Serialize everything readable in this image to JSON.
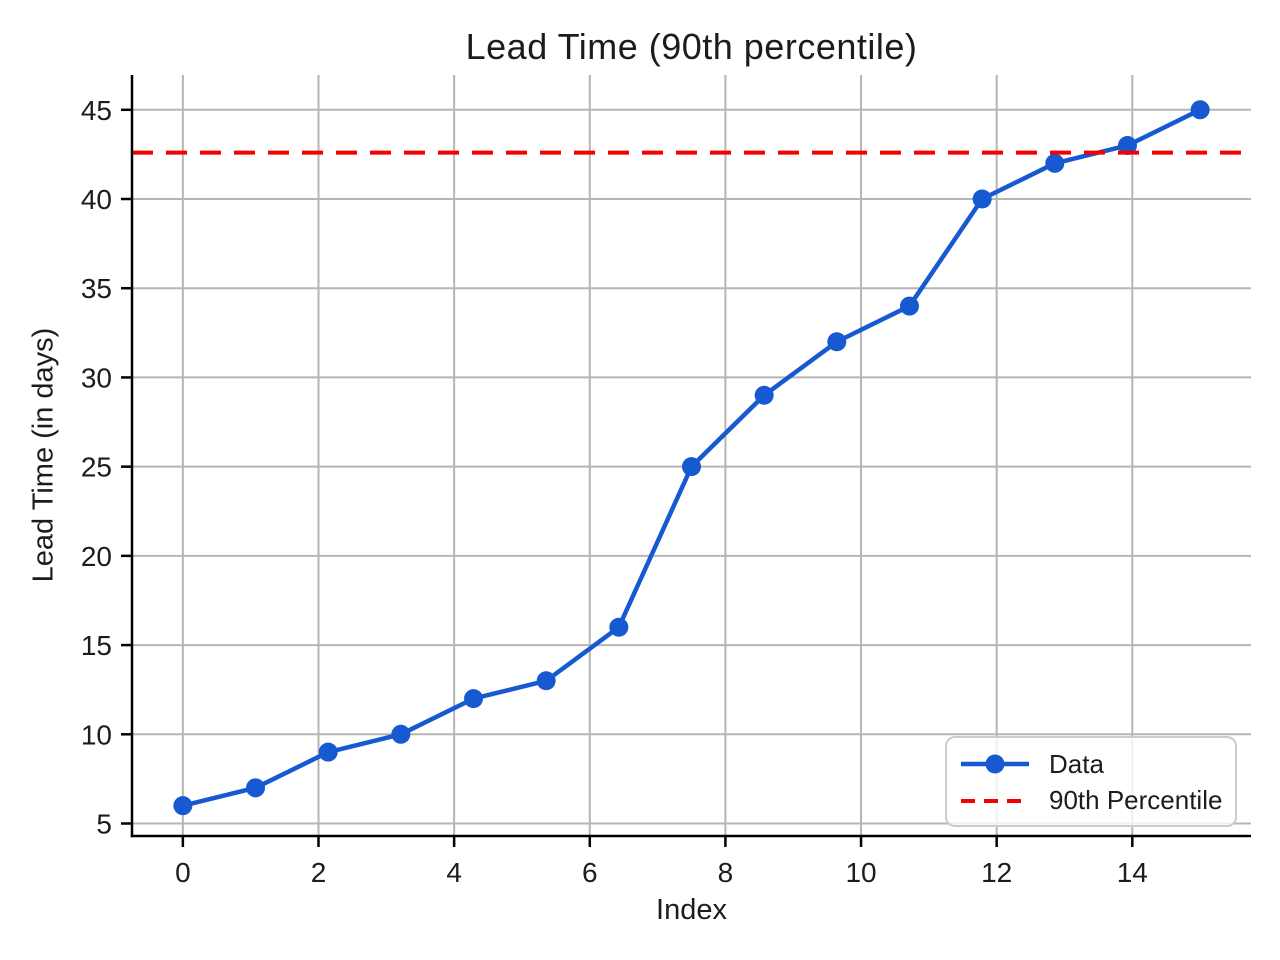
{
  "chart_data": {
    "type": "line",
    "title": "Lead Time (90th percentile)",
    "xlabel": "Index",
    "ylabel": "Lead Time (in days)",
    "x": [
      0,
      1.0714,
      2.1429,
      3.2143,
      4.2857,
      5.3571,
      6.4286,
      7.5,
      8.5714,
      9.6429,
      10.7143,
      11.7857,
      12.8571,
      13.9286,
      15
    ],
    "series": [
      {
        "name": "Data",
        "type": "line-markers",
        "color": "#1659d0",
        "values": [
          6,
          7,
          9,
          10,
          12,
          13,
          16,
          25,
          29,
          32,
          34,
          40,
          42,
          43,
          45
        ]
      },
      {
        "name": "90th Percentile",
        "type": "hline-dashed",
        "color": "#f40000",
        "value": 42.6
      }
    ],
    "xticks": [
      0,
      2,
      4,
      6,
      8,
      10,
      12,
      14
    ],
    "yticks": [
      5,
      10,
      15,
      20,
      25,
      30,
      35,
      40,
      45
    ],
    "xlim": [
      -0.75,
      15.75
    ],
    "ylim": [
      4.3,
      46.95
    ],
    "grid": true,
    "grid_color": "#b5b5b5",
    "spine_color": "#000000",
    "tick_label_color": "#1c1c1c",
    "legend_position": "lower right"
  },
  "legend": {
    "items": [
      {
        "label": "Data",
        "icon": "line-with-marker-icon"
      },
      {
        "label": "90th Percentile",
        "icon": "dashed-line-icon"
      }
    ]
  }
}
